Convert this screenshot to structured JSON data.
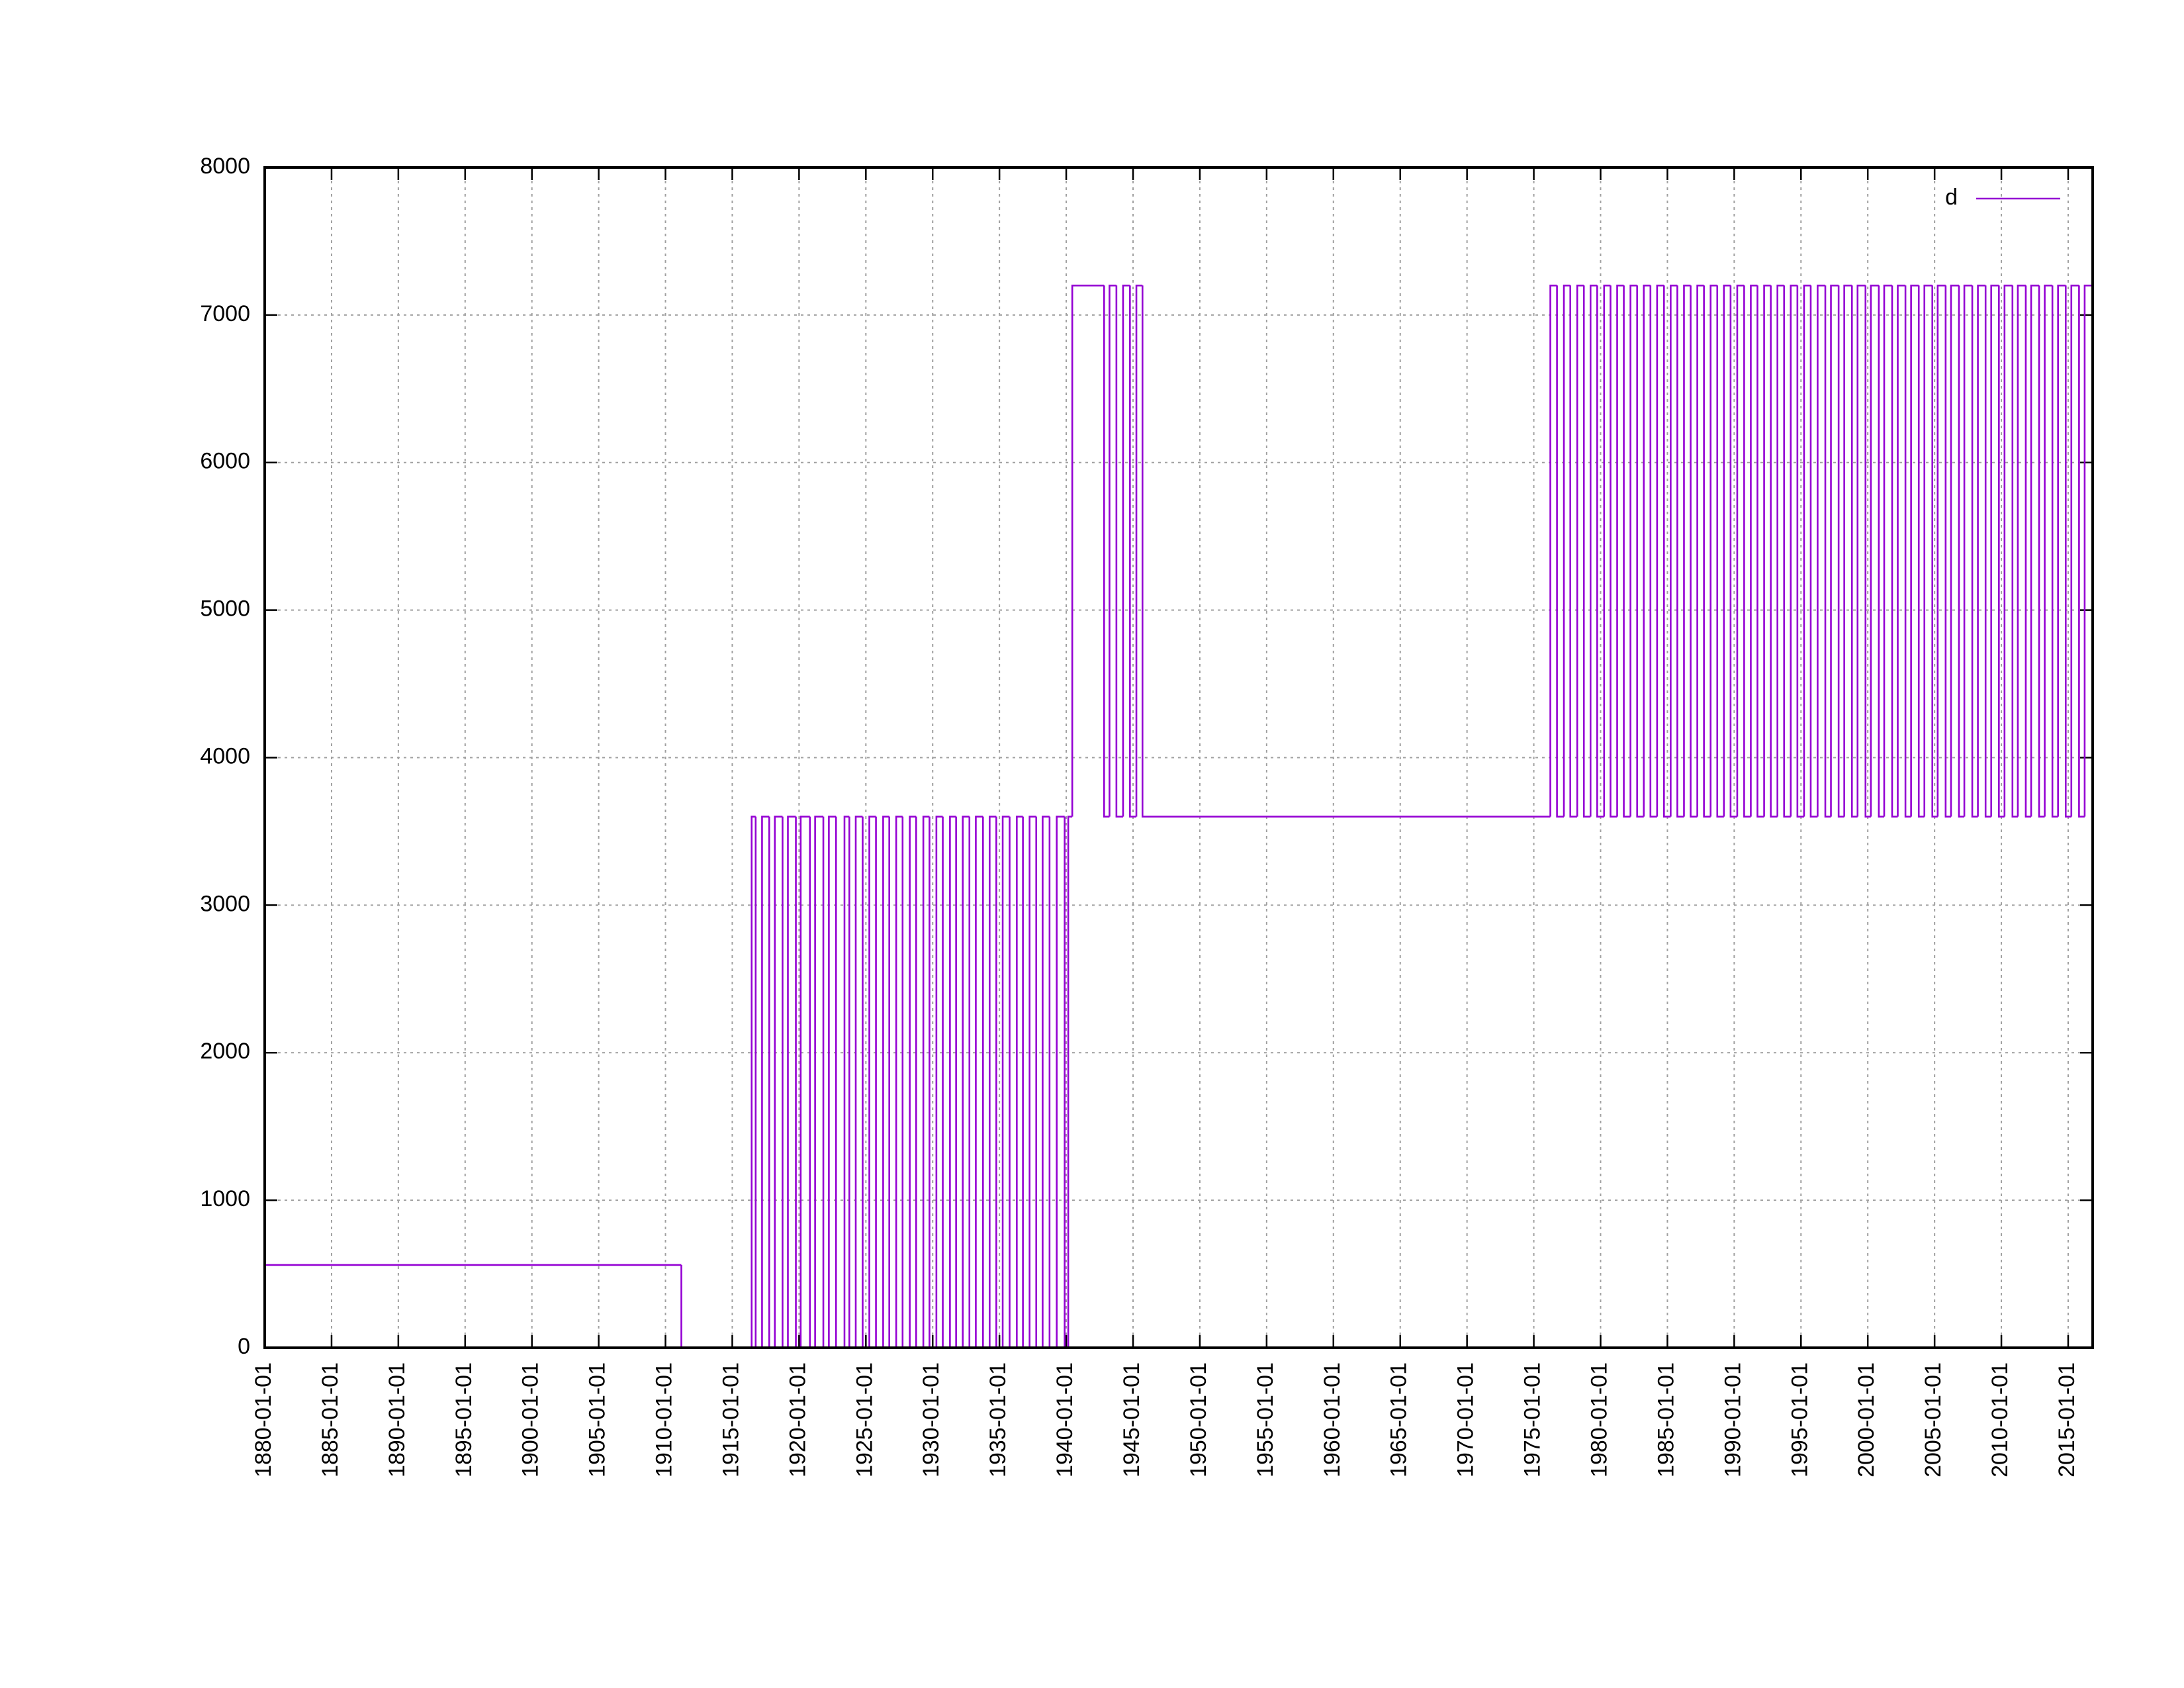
{
  "chart_data": {
    "type": "step",
    "x": [
      "1880-01-01",
      "1911-03-11",
      "1916-06-14",
      "1916-10-02",
      "1917-03-25",
      "1917-10-08",
      "1918-03-10",
      "1918-10-07",
      "1919-03-02",
      "1919-10-06",
      "1920-02-15",
      "1920-10-24",
      "1921-03-15",
      "1921-10-26",
      "1922-03-26",
      "1922-10-08",
      "1923-05-27",
      "1923-10-07",
      "1924-03-30",
      "1924-10-05",
      "1925-04-05",
      "1925-10-04",
      "1926-04-18",
      "1926-10-03",
      "1927-04-10",
      "1927-10-02",
      "1928-04-15",
      "1928-10-07",
      "1929-04-21",
      "1929-10-06",
      "1930-04-13",
      "1930-10-05",
      "1931-04-19",
      "1931-10-04",
      "1932-04-03",
      "1932-10-02",
      "1933-03-26",
      "1933-10-08",
      "1934-04-08",
      "1934-10-07",
      "1935-03-31",
      "1935-10-06",
      "1936-04-19",
      "1936-10-04",
      "1937-04-04",
      "1937-10-03",
      "1938-03-27",
      "1938-10-02",
      "1939-04-16",
      "1939-11-19",
      "1940-02-25",
      "1940-06-14",
      "1942-11-02",
      "1943-03-29",
      "1943-10-04",
      "1944-04-03",
      "1944-10-08",
      "1945-04-02",
      "1945-09-16",
      "1976-03-28",
      "1976-09-26",
      "1977-04-03",
      "1977-09-25",
      "1978-04-02",
      "1978-10-01",
      "1979-04-01",
      "1979-09-30",
      "1980-04-06",
      "1980-09-28",
      "1981-03-29",
      "1981-09-27",
      "1982-03-28",
      "1982-09-26",
      "1983-03-27",
      "1983-09-25",
      "1984-03-25",
      "1984-09-30",
      "1985-03-31",
      "1985-09-29",
      "1986-03-30",
      "1986-09-28",
      "1987-03-29",
      "1987-09-27",
      "1988-03-27",
      "1988-09-25",
      "1989-03-26",
      "1989-09-24",
      "1990-03-25",
      "1990-09-30",
      "1991-03-31",
      "1991-09-29",
      "1992-03-29",
      "1992-09-27",
      "1993-03-28",
      "1993-09-26",
      "1994-03-27",
      "1994-09-25",
      "1995-03-26",
      "1995-09-24",
      "1996-03-31",
      "1996-10-27",
      "1997-03-30",
      "1997-10-26",
      "1998-03-29",
      "1998-10-25",
      "1999-03-28",
      "1999-10-31",
      "2000-03-26",
      "2000-10-29",
      "2001-03-25",
      "2001-10-28",
      "2002-03-31",
      "2002-10-27",
      "2003-03-30",
      "2003-10-26",
      "2004-03-28",
      "2004-10-31",
      "2005-03-27",
      "2005-10-30",
      "2006-03-26",
      "2006-10-29",
      "2007-03-25",
      "2007-10-28",
      "2008-03-30",
      "2008-10-26",
      "2009-03-29",
      "2009-10-25",
      "2010-03-28",
      "2010-10-31",
      "2011-03-27",
      "2011-10-30",
      "2012-03-25",
      "2012-10-28",
      "2013-03-31",
      "2013-10-27",
      "2014-03-30",
      "2014-10-26",
      "2015-03-29",
      "2015-10-25",
      "2016-03-27",
      "2016-10-30"
    ],
    "series": [
      {
        "name": "d",
        "color": "#9400d3",
        "values": [
          561,
          0,
          3600,
          0,
          3600,
          0,
          3600,
          0,
          3600,
          0,
          3600,
          0,
          3600,
          0,
          3600,
          0,
          3600,
          0,
          3600,
          0,
          3600,
          0,
          3600,
          0,
          3600,
          0,
          3600,
          0,
          3600,
          0,
          3600,
          0,
          3600,
          0,
          3600,
          0,
          3600,
          0,
          3600,
          0,
          3600,
          0,
          3600,
          0,
          3600,
          0,
          3600,
          0,
          3600,
          0,
          3600,
          7200,
          3600,
          7200,
          3600,
          7200,
          3600,
          7200,
          3600,
          7200,
          3600,
          7200,
          3600,
          7200,
          3600,
          7200,
          3600,
          7200,
          3600,
          7200,
          3600,
          7200,
          3600,
          7200,
          3600,
          7200,
          3600,
          7200,
          3600,
          7200,
          3600,
          7200,
          3600,
          7200,
          3600,
          7200,
          3600,
          7200,
          3600,
          7200,
          3600,
          7200,
          3600,
          7200,
          3600,
          7200,
          3600,
          7200,
          3600,
          7200,
          3600,
          7200,
          3600,
          7200,
          3600,
          7200,
          3600,
          7200,
          3600,
          7200,
          3600,
          7200,
          3600,
          7200,
          3600,
          7200,
          3600,
          7200,
          3600,
          7200,
          3600,
          7200,
          3600,
          7200,
          3600,
          7200,
          3600,
          7200,
          3600,
          7200,
          3600,
          7200,
          3600,
          7200,
          3600,
          7200,
          3600,
          7200,
          3600,
          7200,
          3600
        ]
      }
    ],
    "xlim": [
      "1880-01-01",
      "2016-11-01"
    ],
    "xticks": [
      "1880-01-01",
      "1885-01-01",
      "1890-01-01",
      "1895-01-01",
      "1900-01-01",
      "1905-01-01",
      "1910-01-01",
      "1915-01-01",
      "1920-01-01",
      "1925-01-01",
      "1930-01-01",
      "1935-01-01",
      "1940-01-01",
      "1945-01-01",
      "1950-01-01",
      "1955-01-01",
      "1960-01-01",
      "1965-01-01",
      "1970-01-01",
      "1975-01-01",
      "1980-01-01",
      "1985-01-01",
      "1990-01-01",
      "1995-01-01",
      "2000-01-01",
      "2005-01-01",
      "2010-01-01",
      "2015-01-01"
    ],
    "ylim": [
      0,
      8000
    ],
    "yticks": [
      0,
      1000,
      2000,
      3000,
      4000,
      5000,
      6000,
      7000,
      8000
    ],
    "grid": true,
    "legend": "top-right"
  }
}
